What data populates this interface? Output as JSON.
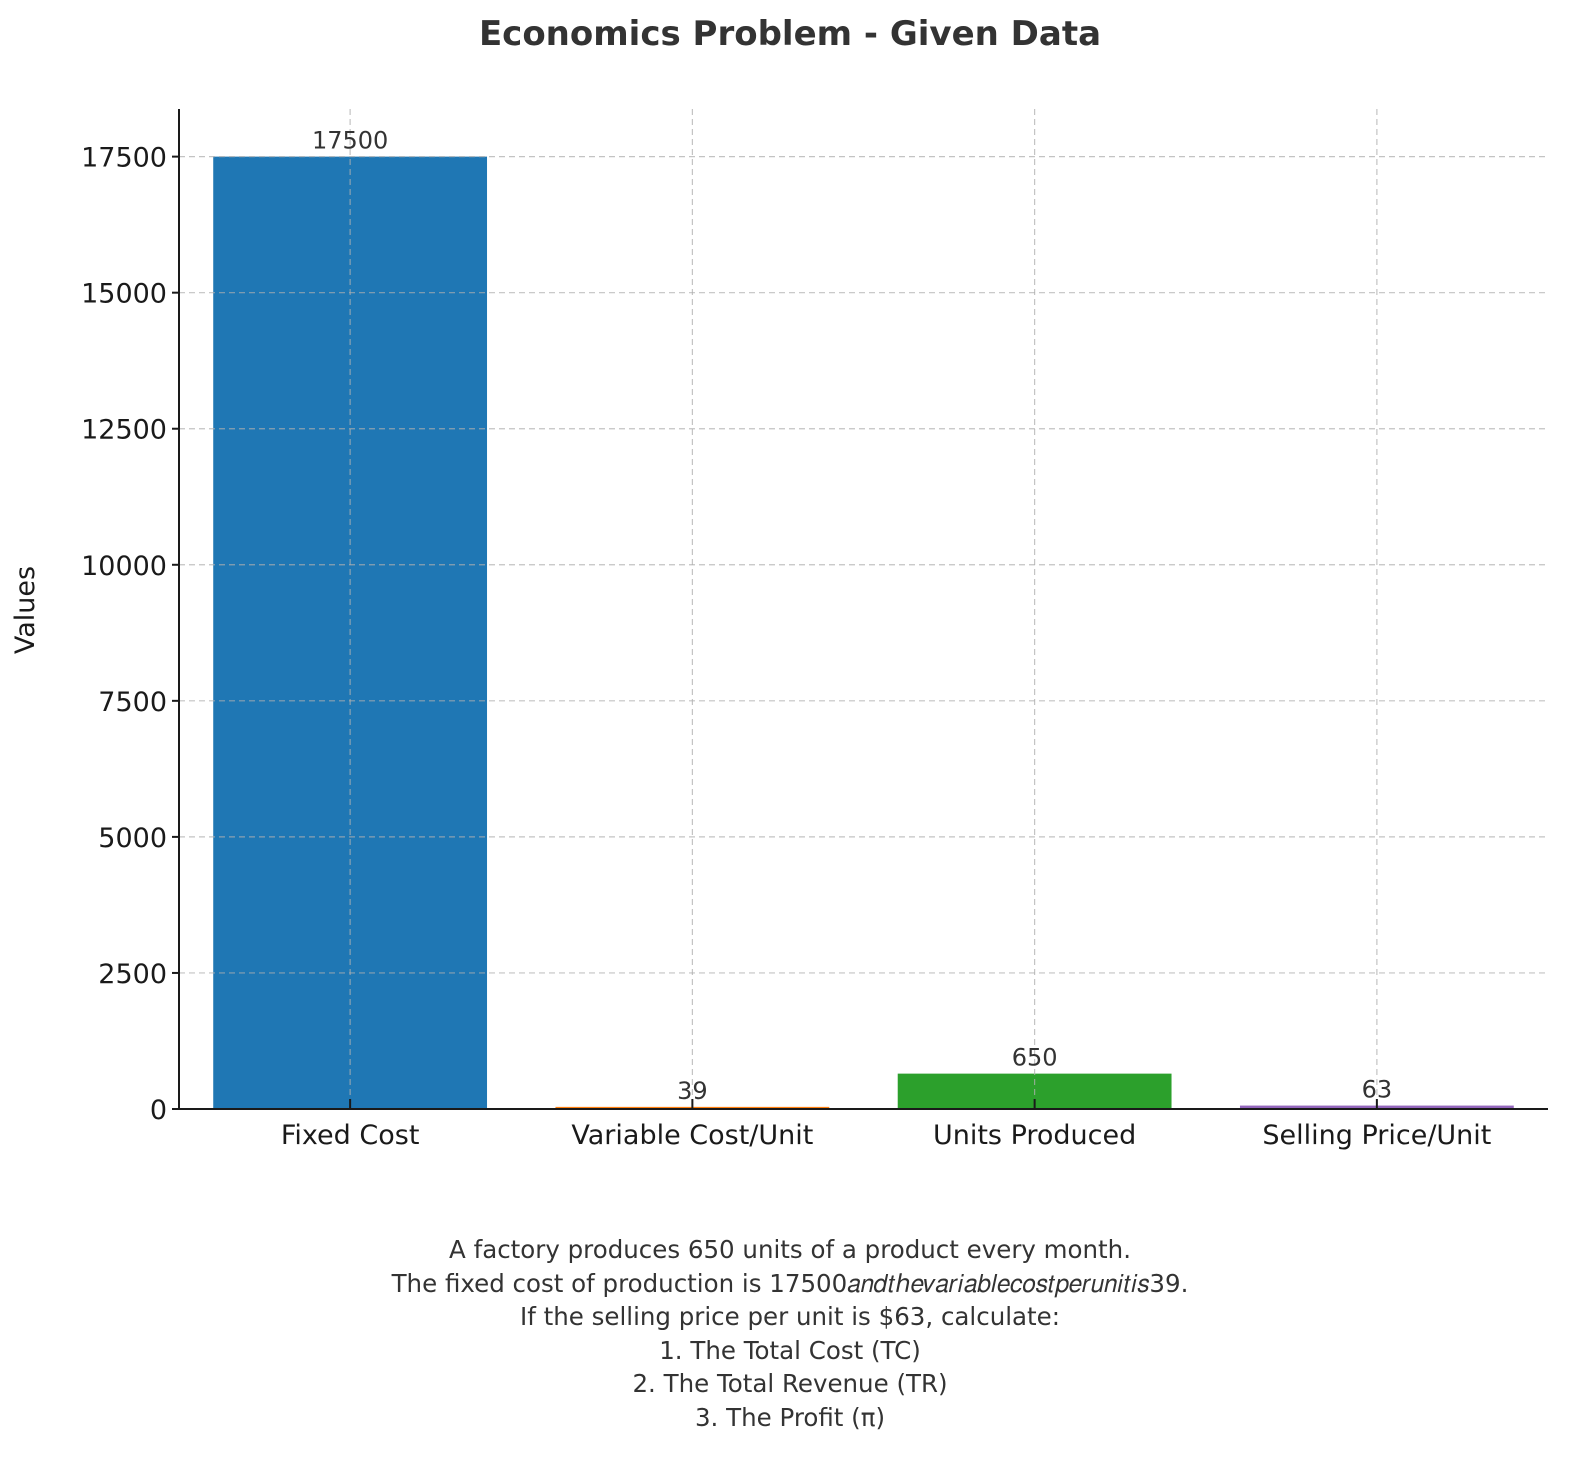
{
  "chart_data": {
    "type": "bar",
    "title": "Economics Problem - Given Data",
    "xlabel": "",
    "ylabel": "Values",
    "categories": [
      "Fixed Cost",
      "Variable Cost/Unit",
      "Units Produced",
      "Selling Price/Unit"
    ],
    "values": [
      17500,
      39,
      650,
      63
    ],
    "value_labels": [
      "17500",
      "39",
      "650",
      "63"
    ],
    "colors": [
      "#1f77b4",
      "#ff7f0e",
      "#2ca02c",
      "#9467bd"
    ],
    "ylim": [
      0,
      18375
    ],
    "yticks": [
      0,
      2500,
      5000,
      7500,
      10000,
      12500,
      15000,
      17500
    ],
    "ytick_labels": [
      "0",
      "2500",
      "5000",
      "7500",
      "10000",
      "12500",
      "15000",
      "17500"
    ],
    "grid": true,
    "annotations": [
      "A factory produces 650 units of a product every month.",
      "The fixed cost of production is 17500𝑎𝑛𝑑𝑡ℎ𝑒𝑣𝑎𝑟𝑖𝑎𝑏𝑙𝑒𝑐𝑜𝑠𝑡𝑝𝑒𝑟𝑢𝑛𝑖𝑡𝑖𝑠39.",
      "If the selling price per unit is $63, calculate:",
      "1. The Total Cost (TC)",
      "2. The Total Revenue (TR)",
      "3. The Profit (π)"
    ]
  }
}
